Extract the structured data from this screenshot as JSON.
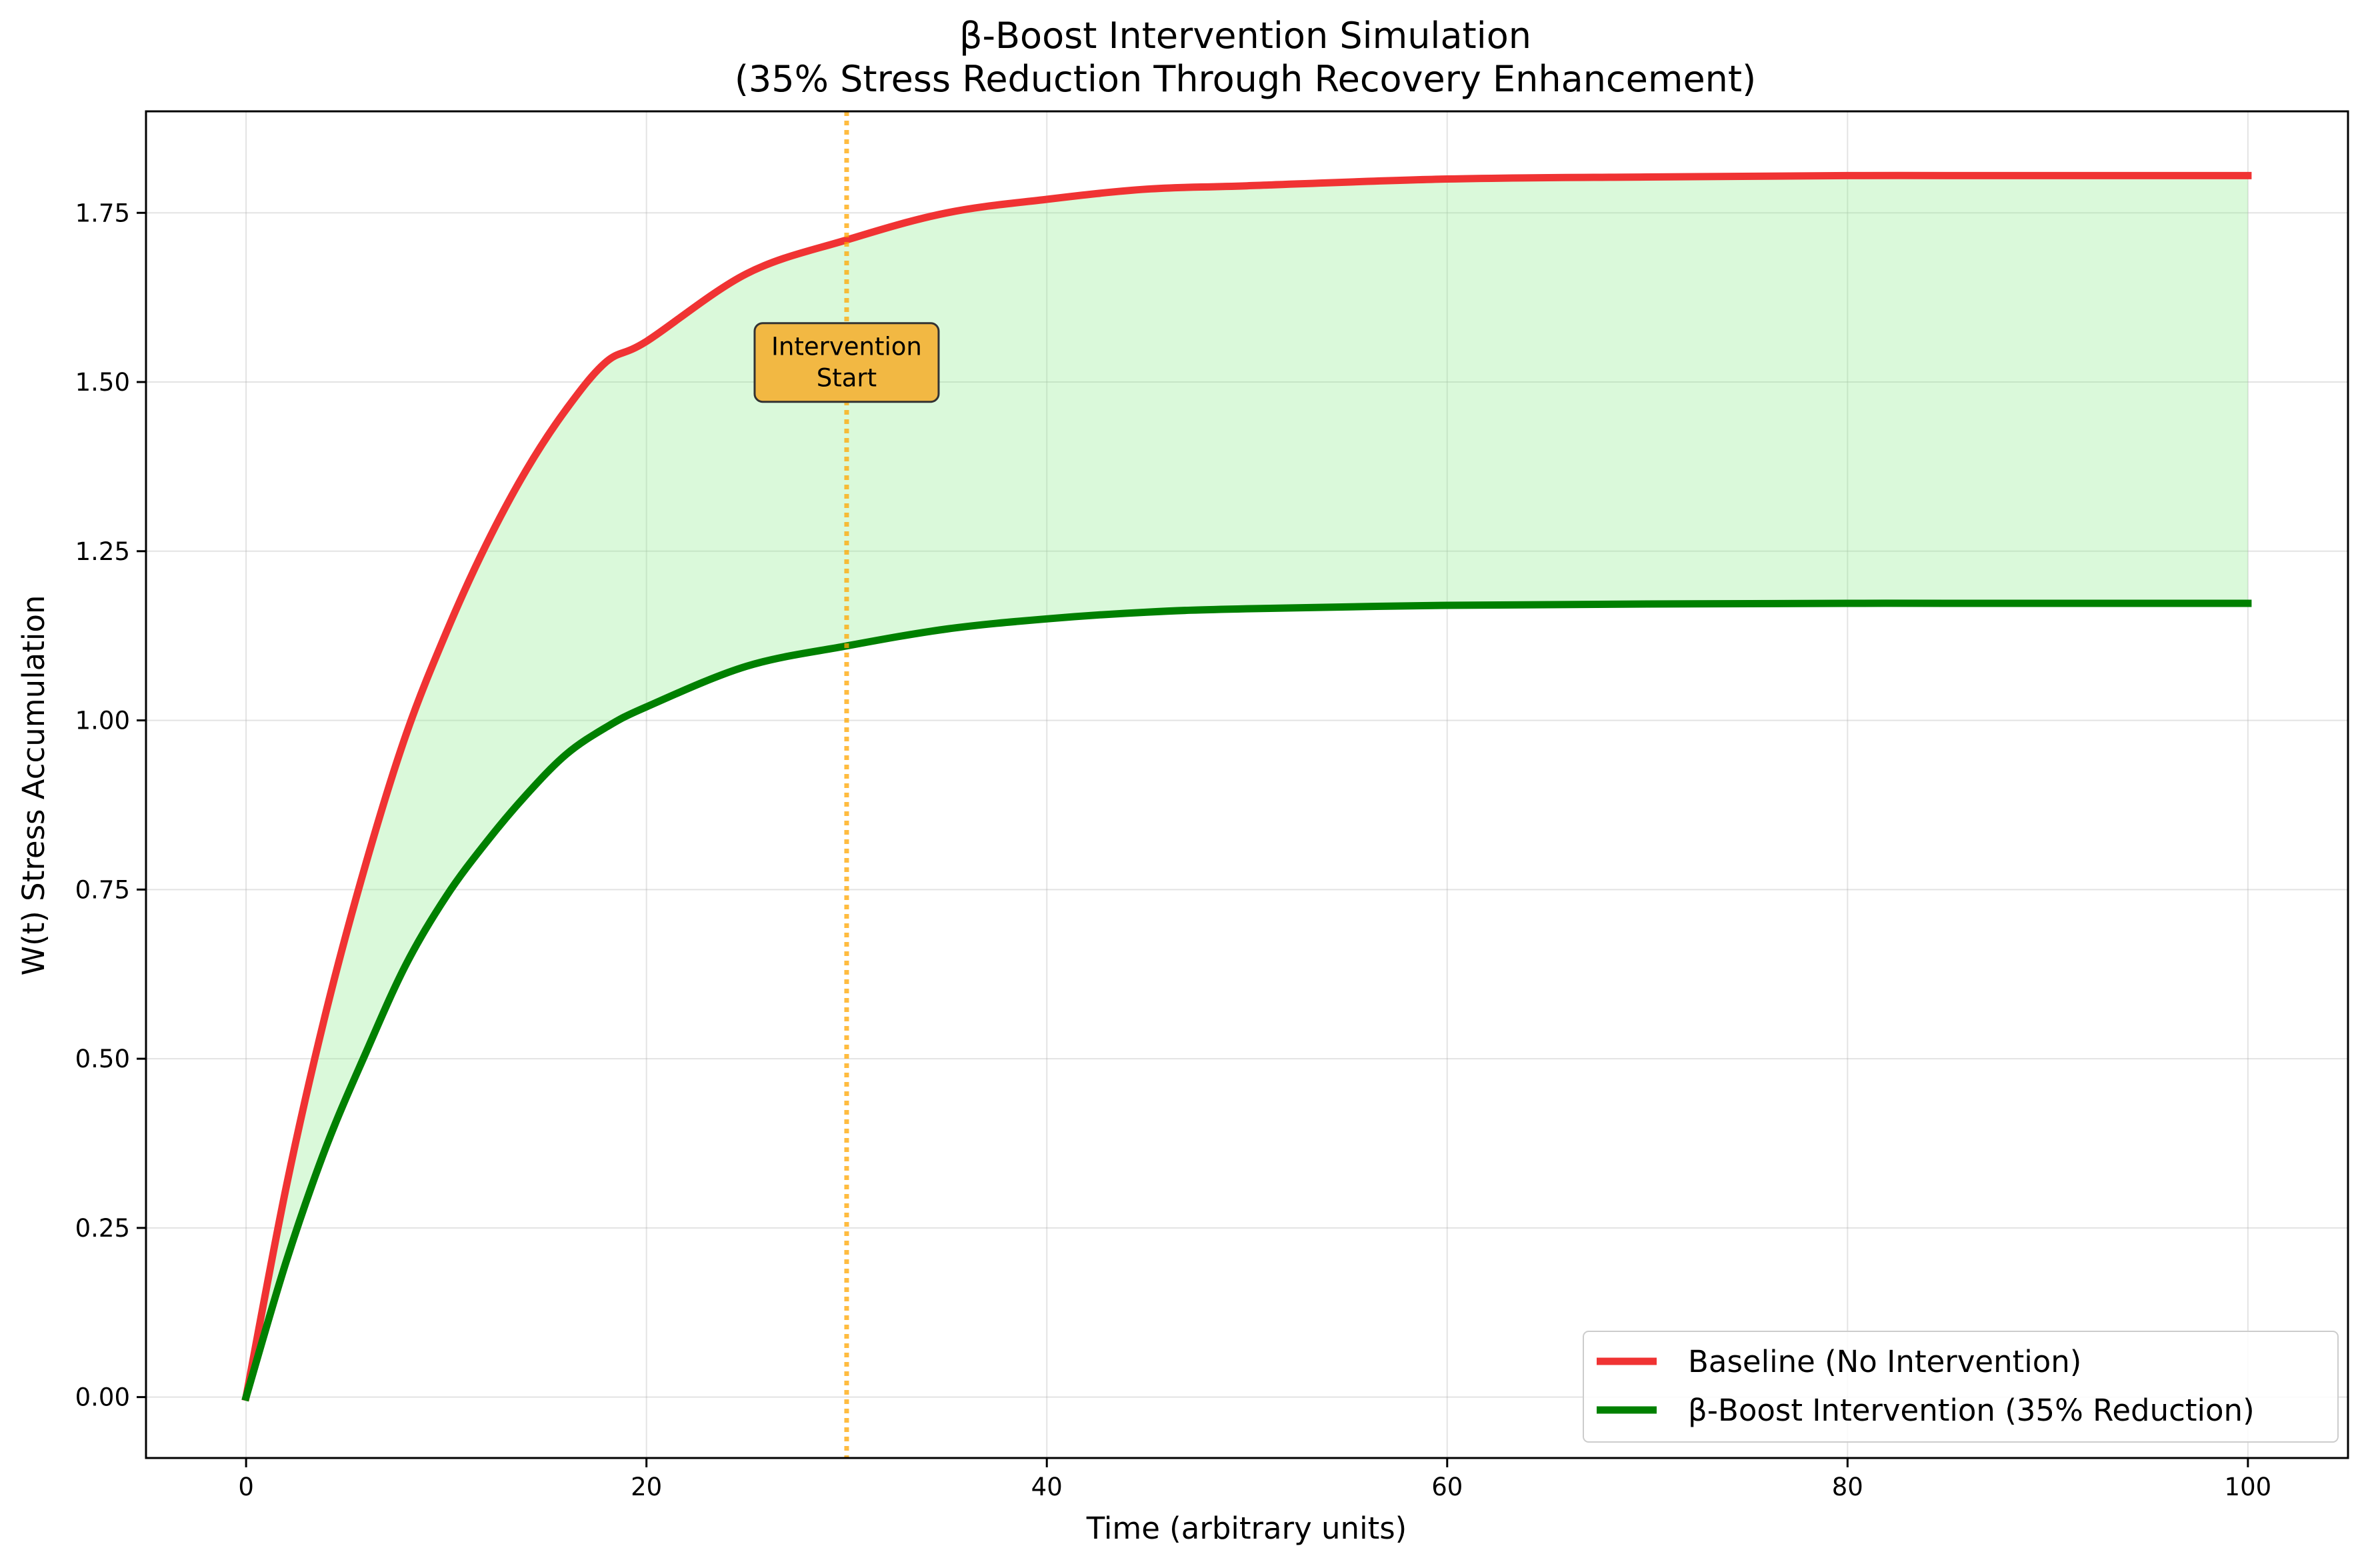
{
  "chart_data": {
    "type": "line",
    "title": "β-Boost Intervention Simulation",
    "subtitle": "(35% Stress Reduction Through Recovery Enhancement)",
    "xlabel": "Time (arbitrary units)",
    "ylabel": "W(t) Stress Accumulation",
    "xlim": [
      -5,
      105
    ],
    "ylim": [
      -0.09,
      1.9
    ],
    "xticks": [
      0,
      20,
      40,
      60,
      80,
      100
    ],
    "xtick_labels": [
      "0",
      "20",
      "40",
      "60",
      "80",
      "100"
    ],
    "yticks": [
      0.0,
      0.25,
      0.5,
      0.75,
      1.0,
      1.25,
      1.5,
      1.75
    ],
    "ytick_labels": [
      "0.00",
      "0.25",
      "0.50",
      "0.75",
      "1.00",
      "1.25",
      "1.50",
      "1.75"
    ],
    "grid": true,
    "legend_position": "lower-right",
    "x": [
      0,
      2,
      4,
      6,
      8,
      10,
      12,
      14,
      16,
      18,
      20,
      25,
      30,
      35,
      40,
      45,
      50,
      60,
      70,
      80,
      90,
      100
    ],
    "series": [
      {
        "name": "Baseline (No Intervention)",
        "color": "#f03333",
        "values": [
          0.0,
          0.31,
          0.57,
          0.79,
          0.98,
          1.13,
          1.26,
          1.37,
          1.46,
          1.53,
          1.56,
          1.66,
          1.71,
          1.75,
          1.77,
          1.785,
          1.79,
          1.8,
          1.803,
          1.805,
          1.805,
          1.805
        ]
      },
      {
        "name": "β-Boost Intervention (35% Reduction)",
        "color": "#008000",
        "values": [
          0.0,
          0.2,
          0.37,
          0.51,
          0.64,
          0.74,
          0.82,
          0.89,
          0.95,
          0.99,
          1.02,
          1.08,
          1.11,
          1.135,
          1.15,
          1.16,
          1.165,
          1.17,
          1.172,
          1.173,
          1.173,
          1.173
        ]
      }
    ],
    "fill_between": {
      "color": "#90ee90",
      "opacity": 0.33
    },
    "vline": {
      "x": 30,
      "color": "#ffa500",
      "style": "dotted"
    },
    "annotation": {
      "lines": [
        "Intervention",
        "Start"
      ],
      "x": 30,
      "y": 1.52,
      "box_color": "#f2b843"
    }
  }
}
